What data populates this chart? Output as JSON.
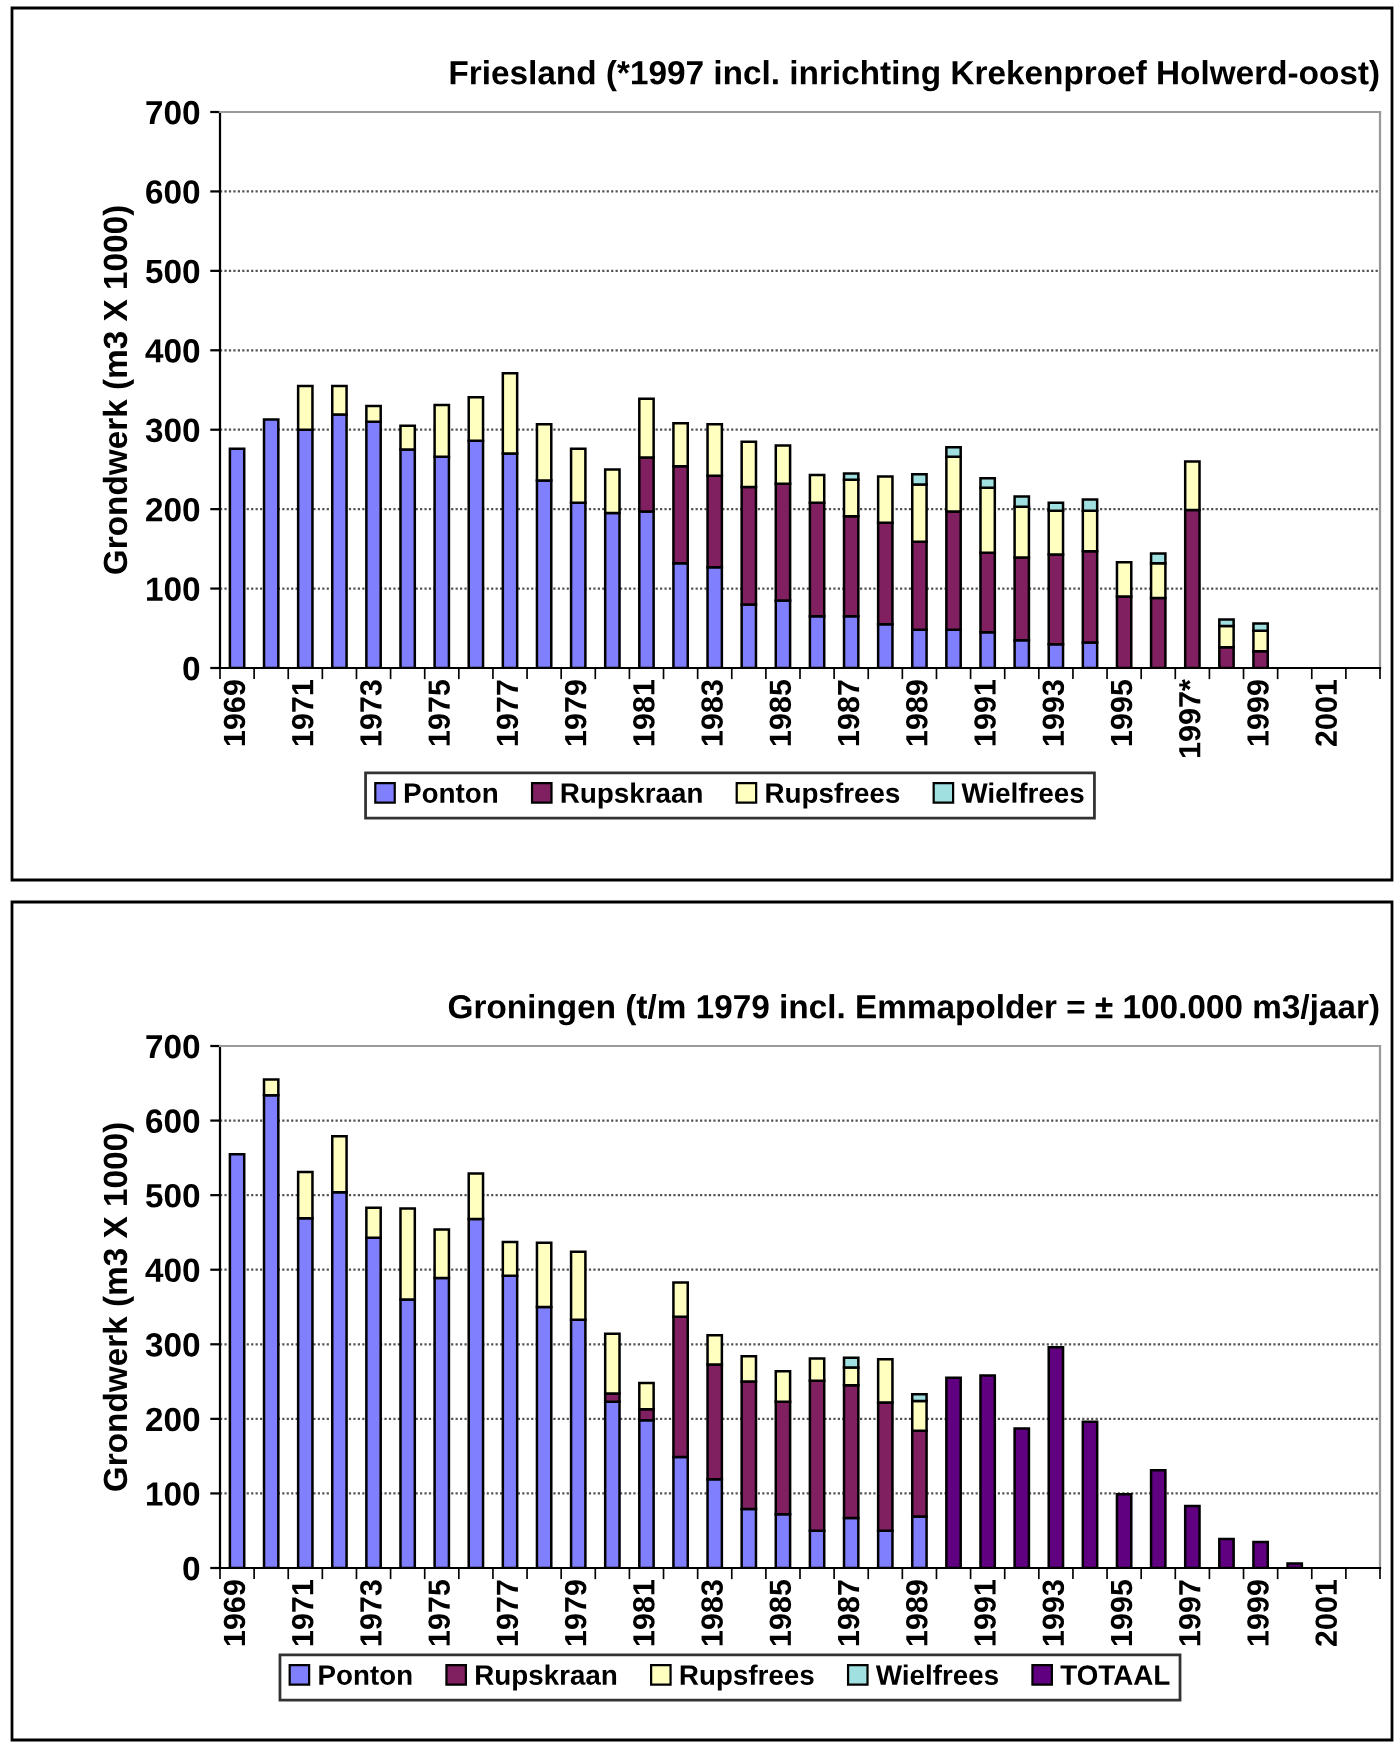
{
  "chart_data": [
    {
      "type": "bar",
      "stacked": true,
      "title": "Friesland (*1997 incl. inrichting Krekenproef Holwerd-oost)",
      "ylabel": "Grondwerk (m3 X 1000)",
      "categories": [
        "1969",
        null,
        "1971",
        null,
        "1973",
        null,
        "1975",
        null,
        "1977",
        null,
        "1979",
        null,
        "1981",
        null,
        "1983",
        null,
        "1985",
        null,
        "1987",
        null,
        "1989",
        null,
        "1991",
        null,
        "1993",
        null,
        "1995",
        null,
        "1997*",
        null,
        "1999",
        null,
        "2001",
        null
      ],
      "series": [
        {
          "name": "Ponton",
          "color": "#8080ff",
          "values": [
            276,
            313,
            300,
            319,
            310,
            275,
            266,
            286,
            270,
            236,
            208,
            195,
            197,
            132,
            127,
            80,
            85,
            65,
            65,
            55,
            48,
            48,
            45,
            35,
            30,
            32,
            null,
            null,
            null,
            null,
            null,
            null,
            null,
            null
          ]
        },
        {
          "name": "Rupskraan",
          "color": "#802060",
          "values": [
            null,
            null,
            null,
            null,
            null,
            null,
            null,
            null,
            null,
            null,
            null,
            null,
            68,
            122,
            115,
            148,
            147,
            143,
            126,
            128,
            111,
            149,
            100,
            104,
            113,
            115,
            90,
            88,
            199,
            26,
            21,
            null,
            null,
            null
          ]
        },
        {
          "name": "Rupsfrees",
          "color": "#ffffc0",
          "values": [
            null,
            null,
            55,
            36,
            20,
            30,
            65,
            55,
            101,
            71,
            68,
            55,
            74,
            54,
            65,
            57,
            48,
            35,
            46,
            58,
            72,
            69,
            82,
            64,
            55,
            51,
            43,
            44,
            61,
            27,
            26,
            null,
            null,
            null
          ]
        },
        {
          "name": "Wielfrees",
          "color": "#a0e0e0",
          "values": [
            null,
            null,
            null,
            null,
            null,
            null,
            null,
            null,
            null,
            null,
            null,
            null,
            null,
            null,
            null,
            null,
            null,
            null,
            8,
            null,
            13,
            12,
            12,
            13,
            10,
            14,
            null,
            12,
            null,
            8,
            9,
            null,
            null,
            null
          ]
        }
      ],
      "ylim": [
        0,
        700
      ],
      "yticks": [
        0,
        100,
        200,
        300,
        400,
        500,
        600,
        700
      ],
      "grid": "y",
      "legend": "bottom"
    },
    {
      "type": "bar",
      "stacked": true,
      "title": "Groningen (t/m 1979 incl. Emmapolder = ± 100.000 m3/jaar)",
      "ylabel": "Grondwerk (m3 X 1000)",
      "categories": [
        "1969",
        null,
        "1971",
        null,
        "1973",
        null,
        "1975",
        null,
        "1977",
        null,
        "1979",
        null,
        "1981",
        null,
        "1983",
        null,
        "1985",
        null,
        "1987",
        null,
        "1989",
        null,
        "1991",
        null,
        "1993",
        null,
        "1995",
        null,
        "1997",
        null,
        "1999",
        null,
        "2001",
        null
      ],
      "series": [
        {
          "name": "Ponton",
          "color": "#8080ff",
          "values": [
            555,
            634,
            469,
            504,
            443,
            360,
            389,
            468,
            392,
            350,
            333,
            223,
            198,
            149,
            119,
            79,
            72,
            50,
            67,
            50,
            69,
            null,
            null,
            null,
            null,
            null,
            null,
            null,
            null,
            null,
            null,
            null,
            null,
            null
          ]
        },
        {
          "name": "Rupskraan",
          "color": "#802060",
          "values": [
            null,
            null,
            null,
            null,
            null,
            null,
            null,
            null,
            null,
            null,
            null,
            11,
            15,
            188,
            154,
            171,
            151,
            201,
            178,
            172,
            115,
            null,
            null,
            null,
            null,
            null,
            null,
            null,
            null,
            null,
            null,
            null,
            null,
            null
          ]
        },
        {
          "name": "Rupsfrees",
          "color": "#ffffc0",
          "values": [
            null,
            21,
            62,
            75,
            40,
            122,
            65,
            61,
            45,
            86,
            91,
            80,
            35,
            46,
            39,
            34,
            41,
            30,
            24,
            58,
            40,
            null,
            null,
            null,
            null,
            null,
            null,
            null,
            null,
            null,
            null,
            null,
            null,
            null
          ]
        },
        {
          "name": "Wielfrees",
          "color": "#a0e0e0",
          "values": [
            null,
            null,
            null,
            null,
            null,
            null,
            null,
            null,
            null,
            null,
            null,
            null,
            null,
            null,
            null,
            null,
            null,
            null,
            13,
            null,
            9,
            null,
            null,
            null,
            null,
            null,
            null,
            null,
            null,
            null,
            null,
            null,
            null,
            null
          ]
        },
        {
          "name": "TOTAAL",
          "color": "#600080",
          "values": [
            null,
            null,
            null,
            null,
            null,
            null,
            null,
            null,
            null,
            null,
            null,
            null,
            null,
            null,
            null,
            null,
            null,
            null,
            null,
            null,
            null,
            255,
            258,
            187,
            296,
            196,
            99,
            131,
            83,
            39,
            35,
            6,
            null,
            null
          ]
        }
      ],
      "ylim": [
        0,
        700
      ],
      "yticks": [
        0,
        100,
        200,
        300,
        400,
        500,
        600,
        700
      ],
      "grid": "y",
      "legend": "bottom"
    }
  ]
}
